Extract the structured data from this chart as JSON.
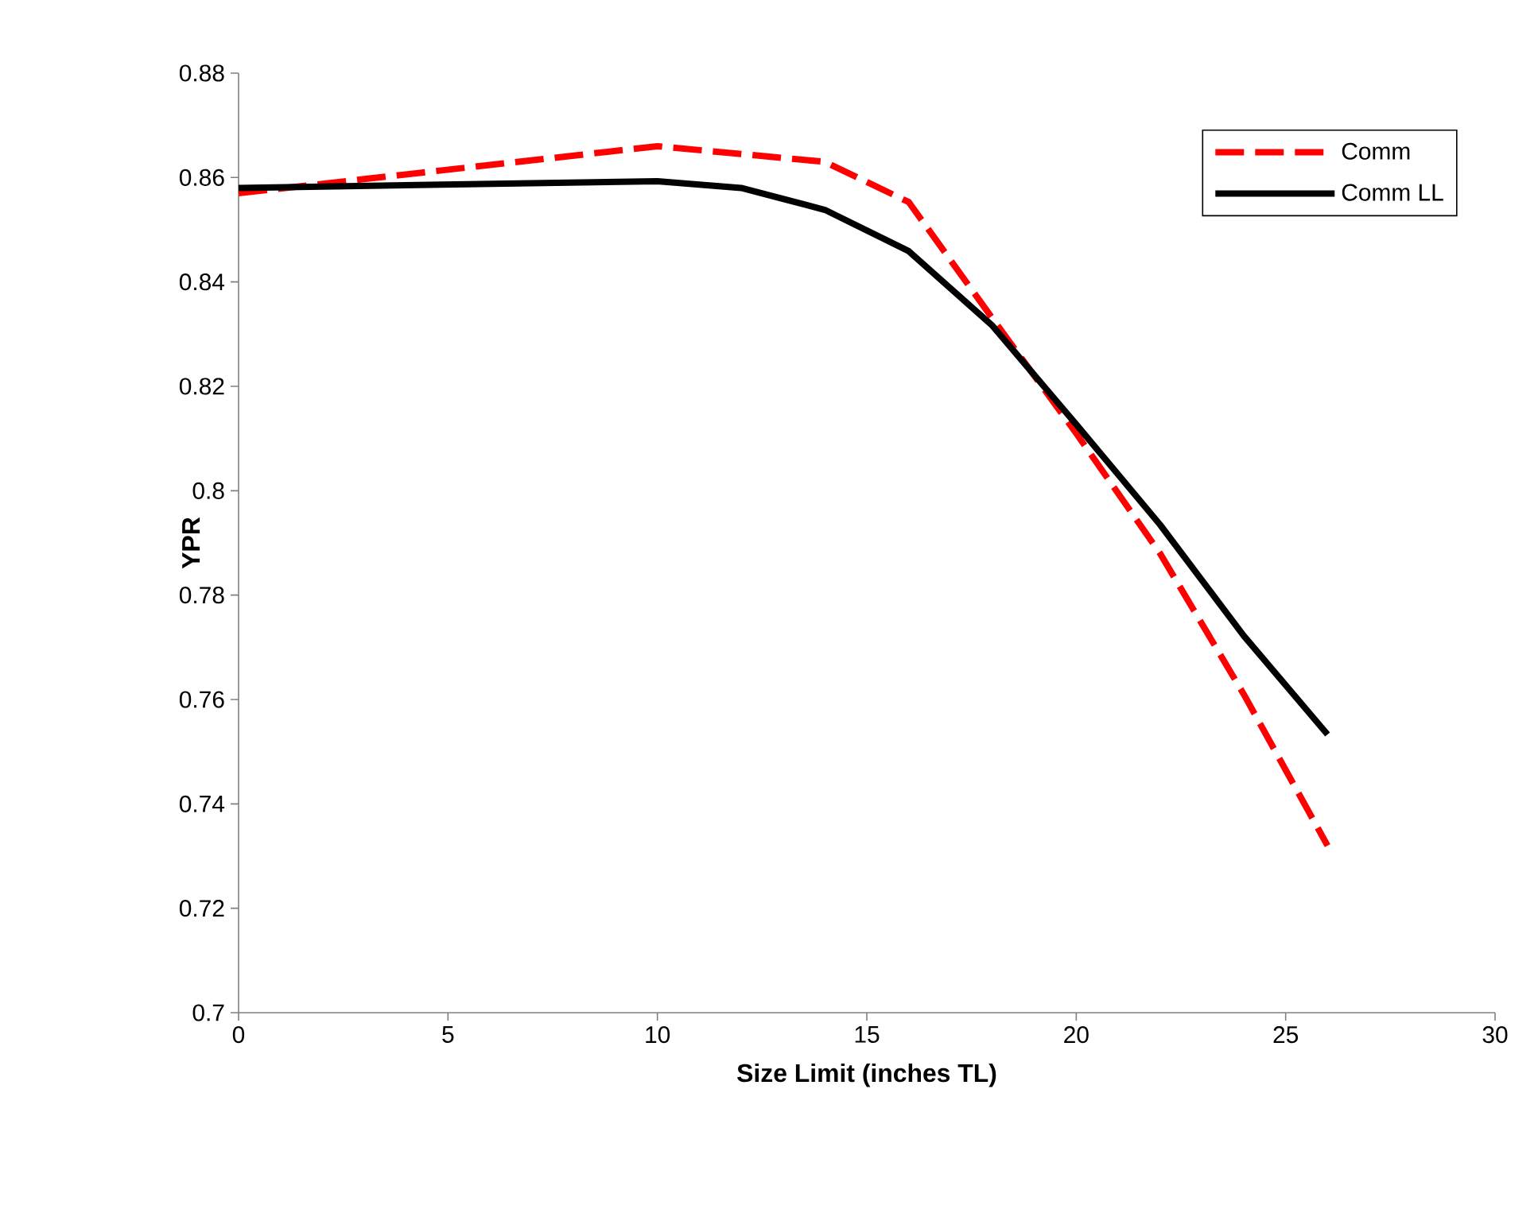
{
  "chart_data": {
    "type": "line",
    "xlabel": "Size Limit (inches TL)",
    "ylabel": "YPR",
    "xlim": [
      0,
      30
    ],
    "ylim": [
      0.7,
      0.88
    ],
    "xticks": [
      0,
      5,
      10,
      15,
      20,
      25,
      30
    ],
    "yticks": [
      0.7,
      0.72,
      0.74,
      0.76,
      0.78,
      0.8,
      0.82,
      0.84,
      0.86,
      0.88
    ],
    "legend": "top right",
    "grid": false,
    "marker": "none",
    "series": [
      {
        "name": "Comm",
        "color": "#ff0000",
        "line_style": "dashed",
        "x": [
          0,
          10,
          14,
          16,
          18,
          20,
          22,
          24,
          26
        ],
        "values": [
          0.857,
          0.866,
          0.863,
          0.8553,
          0.833,
          0.811,
          0.788,
          0.761,
          0.732
        ]
      },
      {
        "name": "Comm LL",
        "color": "#000000",
        "line_style": "solid",
        "x": [
          0,
          10,
          12,
          14,
          16,
          18,
          20,
          22,
          24,
          26
        ],
        "values": [
          0.858,
          0.8593,
          0.858,
          0.8538,
          0.8459,
          0.8316,
          0.8127,
          0.7935,
          0.7722,
          0.7533
        ]
      }
    ]
  }
}
